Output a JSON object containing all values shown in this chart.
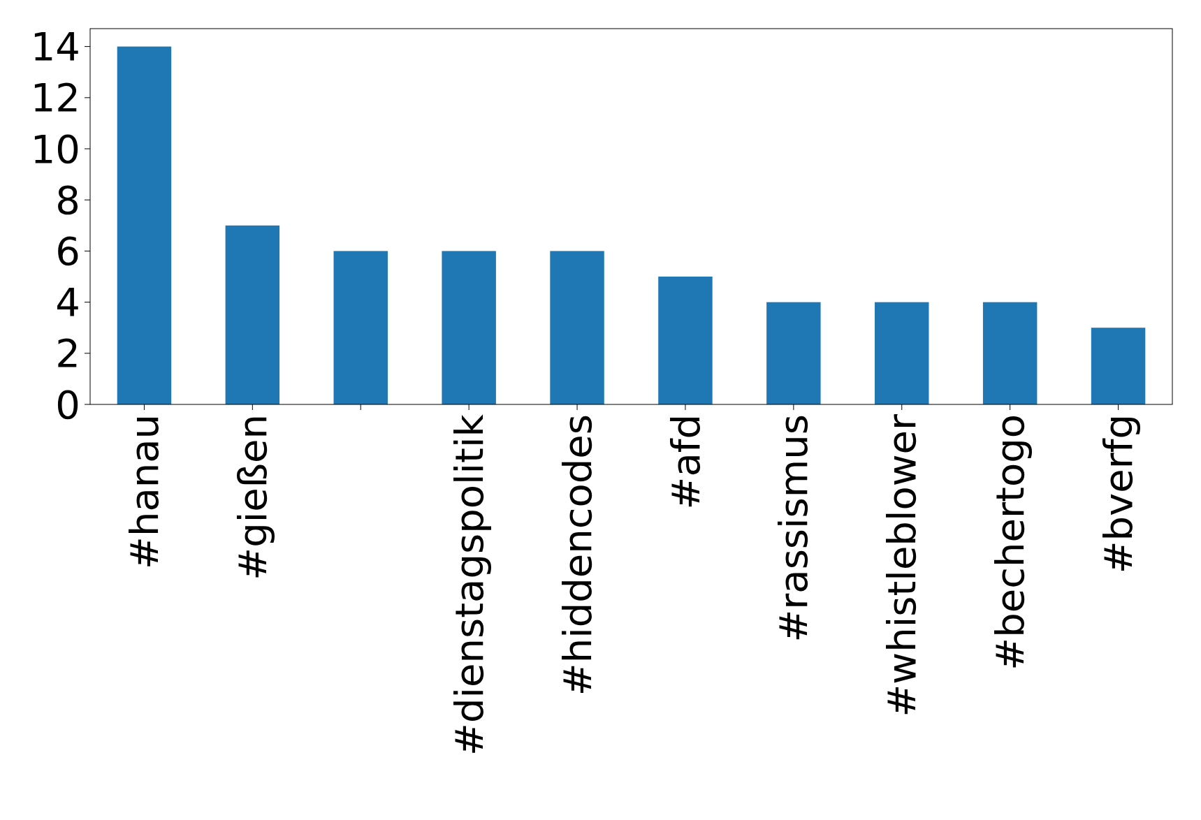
{
  "chart_data": {
    "type": "bar",
    "categories": [
      "#hanau",
      "#gießen",
      null,
      "#dienstagspolitik",
      "#hiddencodes",
      "#afd",
      "#rassismus",
      "#whistleblower",
      "#bechertogo",
      "#bverfg"
    ],
    "values": [
      14,
      7,
      6,
      6,
      6,
      5,
      4,
      4,
      4,
      3
    ],
    "color": "#1f77b4",
    "ylim": [
      0,
      14.7
    ],
    "yticks": [
      0,
      2,
      4,
      6,
      8,
      10,
      12,
      14
    ],
    "grid": false
  }
}
